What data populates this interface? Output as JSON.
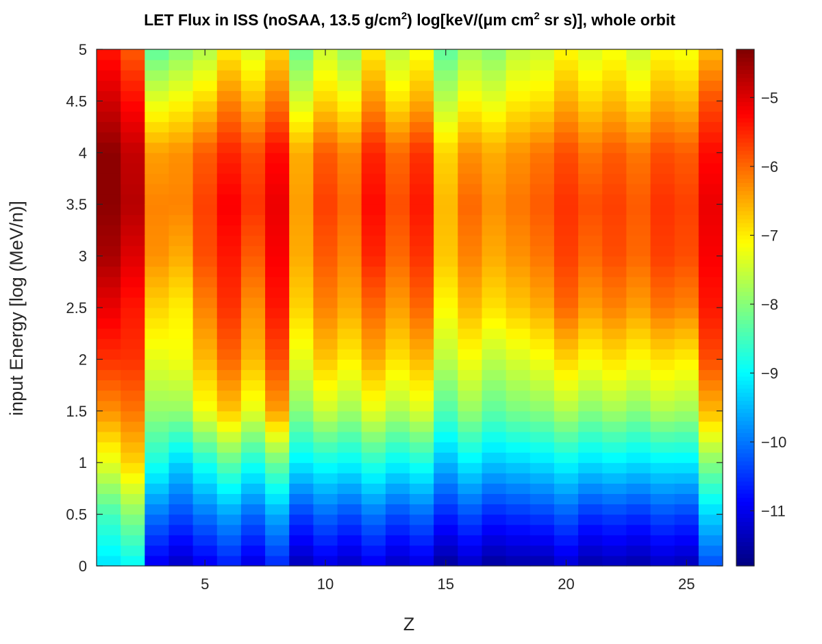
{
  "chart_data": {
    "type": "heatmap",
    "title_parts": {
      "a": "LET Flux in ISS (noSAA, 13.5 g/cm",
      "sup1": "2",
      "b": ") log[keV/(μm cm",
      "sup2": "2",
      "c": " sr s)], whole orbit"
    },
    "xlabel": "Z",
    "ylabel": "input Energy [log (MeV/n)]",
    "xlim": [
      0.5,
      26.5
    ],
    "ylim": [
      0,
      5
    ],
    "x_ticks": [
      5,
      10,
      15,
      20,
      25
    ],
    "y_ticks": [
      0,
      0.5,
      1,
      1.5,
      2,
      2.5,
      3,
      3.5,
      4,
      4.5,
      5
    ],
    "colorbar": {
      "colormap": "jet",
      "clim": [
        -11.8,
        -4.3
      ],
      "ticks": [
        -11,
        -10,
        -9,
        -8,
        -7,
        -6,
        -5
      ]
    },
    "z_values": [
      1,
      2,
      3,
      4,
      5,
      6,
      7,
      8,
      9,
      10,
      11,
      12,
      13,
      14,
      15,
      16,
      17,
      18,
      19,
      20,
      21,
      22,
      23,
      24,
      25,
      26
    ],
    "energy_nodes_log_MeV_per_n": [
      0,
      0.5,
      1,
      1.5,
      2,
      2.5,
      3,
      3.5,
      4,
      4.5,
      5
    ],
    "log_flux_profiles": [
      [
        -9.2,
        -8.5,
        -7.3,
        -6.3,
        -5.6,
        -5.1,
        -4.6,
        -4.4,
        -4.4,
        -4.9,
        -5.4
      ],
      [
        -9.0,
        -8.0,
        -6.8,
        -6.1,
        -5.6,
        -5.4,
        -5.0,
        -4.7,
        -4.8,
        -5.3,
        -5.9
      ],
      [
        -11.0,
        -10.0,
        -8.8,
        -7.9,
        -7.3,
        -6.8,
        -6.3,
        -6.2,
        -6.4,
        -7.3,
        -8.3
      ],
      [
        -11.3,
        -10.3,
        -9.3,
        -7.9,
        -7.2,
        -7.0,
        -6.5,
        -6.2,
        -6.3,
        -7.1,
        -8.0
      ],
      [
        -11.0,
        -10.0,
        -8.8,
        -7.2,
        -6.6,
        -6.2,
        -5.8,
        -5.7,
        -5.9,
        -6.8,
        -7.7
      ],
      [
        -10.7,
        -9.7,
        -8.3,
        -6.7,
        -6.0,
        -5.6,
        -5.4,
        -5.2,
        -5.5,
        -6.2,
        -7.0
      ],
      [
        -11.1,
        -10.1,
        -8.8,
        -7.3,
        -6.6,
        -6.3,
        -5.9,
        -5.6,
        -5.8,
        -6.6,
        -7.4
      ],
      [
        -10.6,
        -9.6,
        -8.2,
        -6.4,
        -5.8,
        -5.4,
        -5.2,
        -5.1,
        -5.3,
        -6.1,
        -6.8
      ],
      [
        -11.4,
        -10.4,
        -9.1,
        -8.0,
        -7.3,
        -6.8,
        -6.5,
        -6.4,
        -6.5,
        -7.4,
        -8.2
      ],
      [
        -11.1,
        -10.1,
        -8.9,
        -7.5,
        -6.7,
        -6.2,
        -5.9,
        -5.7,
        -5.9,
        -6.8,
        -7.5
      ],
      [
        -11.3,
        -10.3,
        -9.0,
        -7.8,
        -7.0,
        -6.5,
        -6.2,
        -6.0,
        -6.2,
        -7.1,
        -7.9
      ],
      [
        -11.0,
        -10.0,
        -8.7,
        -7.3,
        -6.5,
        -6.0,
        -5.5,
        -5.3,
        -5.5,
        -6.3,
        -7.0
      ],
      [
        -11.3,
        -10.3,
        -9.0,
        -7.7,
        -6.9,
        -6.4,
        -6.0,
        -5.8,
        -6.0,
        -6.9,
        -7.6
      ],
      [
        -11.1,
        -10.1,
        -8.8,
        -7.4,
        -6.6,
        -6.0,
        -5.6,
        -5.4,
        -5.6,
        -6.5,
        -7.2
      ],
      [
        -11.6,
        -10.6,
        -9.5,
        -8.4,
        -7.6,
        -7.1,
        -6.7,
        -6.6,
        -6.8,
        -7.6,
        -8.3
      ],
      [
        -11.3,
        -10.3,
        -9.1,
        -7.9,
        -7.2,
        -6.6,
        -6.2,
        -6.0,
        -6.3,
        -7.1,
        -7.8
      ],
      [
        -11.6,
        -10.6,
        -9.4,
        -8.3,
        -7.6,
        -6.9,
        -6.5,
        -6.3,
        -6.5,
        -7.3,
        -8.0
      ],
      [
        -11.5,
        -10.5,
        -9.3,
        -8.1,
        -7.4,
        -6.7,
        -6.3,
        -6.1,
        -6.3,
        -7.0,
        -7.6
      ],
      [
        -11.5,
        -10.4,
        -9.2,
        -8.0,
        -7.2,
        -6.5,
        -6.1,
        -5.9,
        -6.1,
        -6.9,
        -7.5
      ],
      [
        -11.2,
        -10.2,
        -9.0,
        -7.7,
        -6.8,
        -6.0,
        -5.7,
        -5.6,
        -5.8,
        -6.5,
        -7.1
      ],
      [
        -11.5,
        -10.5,
        -9.2,
        -8.0,
        -7.1,
        -6.4,
        -6.0,
        -5.8,
        -6.1,
        -6.8,
        -7.4
      ],
      [
        -11.4,
        -10.4,
        -9.1,
        -7.8,
        -6.9,
        -6.2,
        -5.8,
        -5.7,
        -5.9,
        -6.6,
        -7.2
      ],
      [
        -11.5,
        -10.5,
        -9.2,
        -8.0,
        -7.1,
        -6.4,
        -6.0,
        -5.9,
        -6.1,
        -6.9,
        -7.5
      ],
      [
        -11.3,
        -10.3,
        -9.1,
        -7.7,
        -6.9,
        -6.1,
        -5.7,
        -5.6,
        -5.8,
        -6.5,
        -7.1
      ],
      [
        -11.4,
        -10.4,
        -9.1,
        -7.8,
        -7.0,
        -6.2,
        -5.8,
        -5.7,
        -5.9,
        -6.6,
        -7.2
      ],
      [
        -10.3,
        -9.3,
        -8.0,
        -6.6,
        -5.8,
        -5.4,
        -5.2,
        -5.1,
        -5.3,
        -5.8,
        -6.6
      ]
    ]
  }
}
